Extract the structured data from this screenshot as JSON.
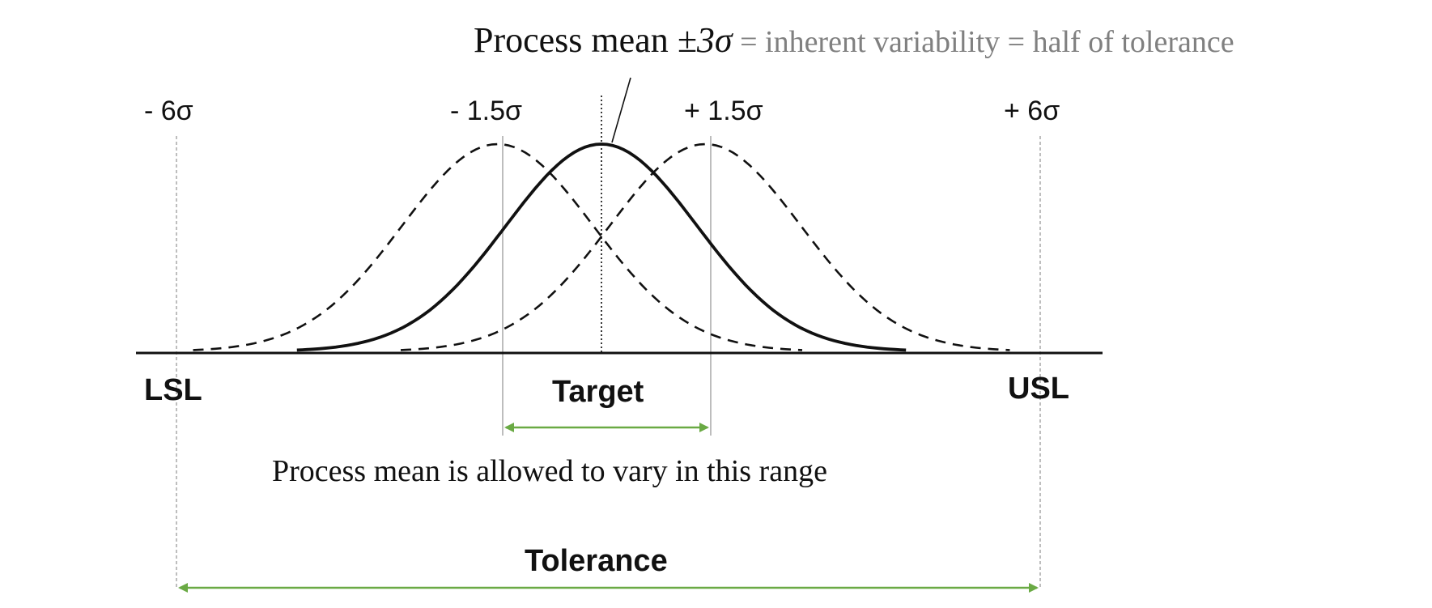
{
  "title": {
    "main_prefix": "Process mean ",
    "main_symbol": "±3σ",
    "subtitle": " = inherent variability = half of tolerance"
  },
  "sigma_labels": {
    "minus_six": "- 6σ",
    "minus_one_five": "- 1.5σ",
    "plus_one_five": "+ 1.5σ",
    "plus_six": "+ 6σ"
  },
  "limits": {
    "lower": "LSL",
    "target": "Target",
    "upper": "USL"
  },
  "annotations": {
    "mean_range": "Process mean is allowed to vary in this range",
    "tolerance": "Tolerance"
  },
  "colors": {
    "arrow": "#6aaa44",
    "title_gray": "#808080",
    "curve": "#111111"
  },
  "distributions": [
    {
      "label": "- 1.5σ",
      "mean_sigma": -1.5,
      "style": "dashed"
    },
    {
      "label": "Target",
      "mean_sigma": 0,
      "style": "solid"
    },
    {
      "label": "+ 1.5σ",
      "mean_sigma": 1.5,
      "style": "dashed"
    }
  ]
}
